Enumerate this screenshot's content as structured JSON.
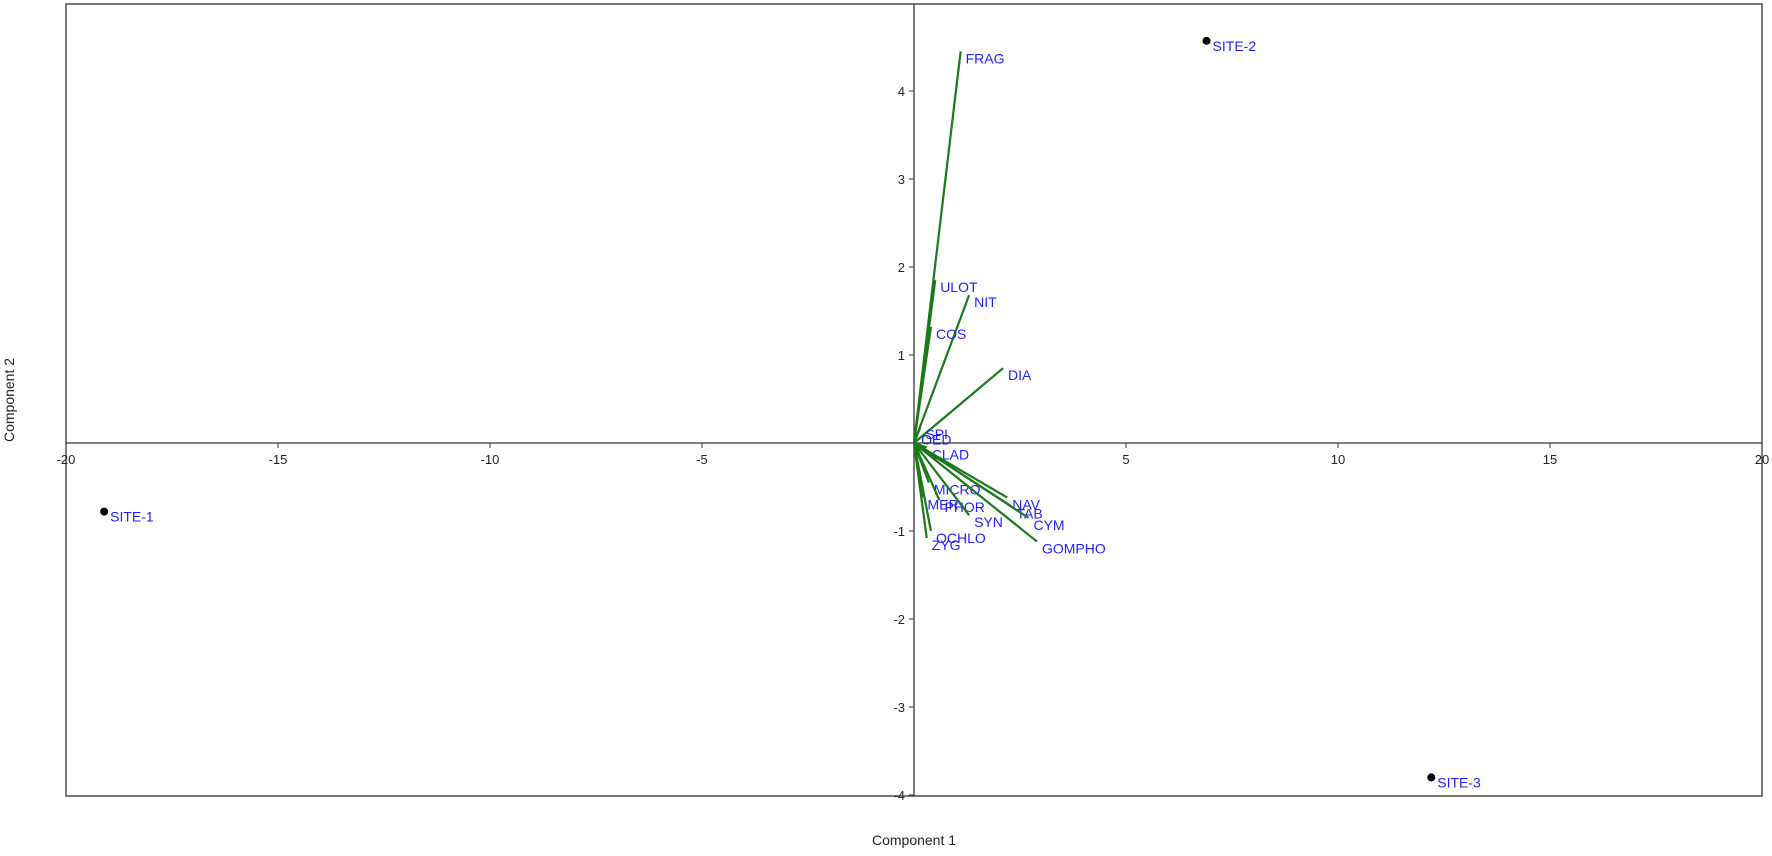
{
  "chart_data": {
    "type": "scatter",
    "subtype": "pca-biplot",
    "title": "",
    "xlabel": "Component 1",
    "ylabel": "Component 2",
    "xlim": [
      -20,
      20
    ],
    "ylim": [
      -4,
      5
    ],
    "x_ticks": [
      -20,
      -15,
      -10,
      -5,
      0,
      5,
      10,
      15,
      20
    ],
    "x_tick_labels": [
      "-20",
      "-15",
      "-10",
      "-5",
      "",
      "5",
      "10",
      "15",
      "20"
    ],
    "y_ticks": [
      -4,
      -3,
      -2,
      -1,
      0,
      1,
      2,
      3,
      4
    ],
    "y_tick_labels": [
      "-4",
      "-3",
      "-2",
      "-1",
      "",
      "1",
      "2",
      "3",
      "4"
    ],
    "grid": false,
    "colors": {
      "vector": "#1a7a1a",
      "label": "#1f1fff",
      "point": "#000000",
      "axis": "#333333"
    },
    "points": [
      {
        "label": "SITE-1",
        "x": -19.1,
        "y": -0.78
      },
      {
        "label": "SITE-2",
        "x": 6.9,
        "y": 4.57
      },
      {
        "label": "SITE-3",
        "x": 12.2,
        "y": -3.8
      }
    ],
    "vectors": [
      {
        "label": "FRAG",
        "x": 1.1,
        "y": 4.45
      },
      {
        "label": "ULOT",
        "x": 0.5,
        "y": 1.85
      },
      {
        "label": "NIT",
        "x": 1.3,
        "y": 1.68
      },
      {
        "label": "COS",
        "x": 0.4,
        "y": 1.32
      },
      {
        "label": "DIA",
        "x": 2.1,
        "y": 0.85
      },
      {
        "label": "SPI",
        "x": 0.15,
        "y": 0.18
      },
      {
        "label": "OED",
        "x": 0.05,
        "y": 0.12
      },
      {
        "label": "CLAD",
        "x": 0.3,
        "y": -0.05
      },
      {
        "label": "MICRO",
        "x": 0.35,
        "y": -0.45
      },
      {
        "label": "MER",
        "x": 0.2,
        "y": -0.62
      },
      {
        "label": "PHOR",
        "x": 0.6,
        "y": -0.65
      },
      {
        "label": "NAV",
        "x": 2.2,
        "y": -0.62
      },
      {
        "label": "TAB",
        "x": 2.3,
        "y": -0.72
      },
      {
        "label": "CYM",
        "x": 2.7,
        "y": -0.85
      },
      {
        "label": "SYN",
        "x": 1.3,
        "y": -0.82
      },
      {
        "label": "OCHLO",
        "x": 0.4,
        "y": -1.0
      },
      {
        "label": "ZYG",
        "x": 0.3,
        "y": -1.08
      },
      {
        "label": "GOMPHO",
        "x": 2.9,
        "y": -1.12
      }
    ]
  }
}
